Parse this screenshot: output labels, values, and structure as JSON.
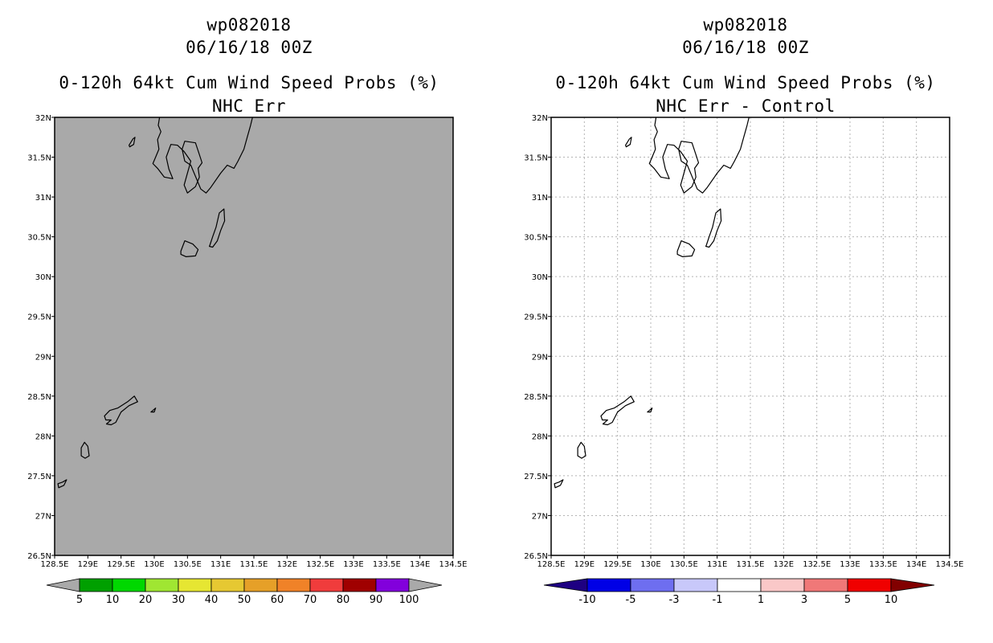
{
  "chart_data": [
    {
      "type": "heatmap",
      "storm_id": "wp082018",
      "datetime": "06/16/18 00Z",
      "title": "0-120h 64kt Cum Wind Speed Probs (%)",
      "subtitle": "NHC Err",
      "x_ticks": [
        "128.5E",
        "129E",
        "129.5E",
        "130E",
        "130.5E",
        "131E",
        "131.5E",
        "132E",
        "132.5E",
        "133E",
        "133.5E",
        "134E",
        "134.5E"
      ],
      "y_ticks": [
        "32N",
        "31.5N",
        "31N",
        "30.5N",
        "30N",
        "29.5N",
        "29N",
        "28.5N",
        "28N",
        "27.5N",
        "27N",
        "26.5N"
      ],
      "xlim": [
        128.5,
        134.5
      ],
      "ylim": [
        26.5,
        32
      ],
      "field_fill": "#a9a9a9",
      "gridlines": false,
      "field_value": "below 5% everywhere",
      "colorbar": {
        "labels": [
          "5",
          "10",
          "20",
          "30",
          "40",
          "50",
          "60",
          "70",
          "80",
          "90",
          "100"
        ],
        "colors": [
          "#a9a9a9",
          "#00a000",
          "#00d800",
          "#a0e632",
          "#e6e632",
          "#e6c832",
          "#e6a028",
          "#f08228",
          "#f03c3c",
          "#a00000",
          "#8200dc",
          "#a9a9a9"
        ]
      }
    },
    {
      "type": "heatmap",
      "storm_id": "wp082018",
      "datetime": "06/16/18 00Z",
      "title": "0-120h 64kt Cum Wind Speed Probs (%)",
      "subtitle": "NHC Err - Control",
      "x_ticks": [
        "128.5E",
        "129E",
        "129.5E",
        "130E",
        "130.5E",
        "131E",
        "131.5E",
        "132E",
        "132.5E",
        "133E",
        "133.5E",
        "134E",
        "134.5E"
      ],
      "y_ticks": [
        "32N",
        "31.5N",
        "31N",
        "30.5N",
        "30N",
        "29.5N",
        "29N",
        "28.5N",
        "28N",
        "27.5N",
        "27N",
        "26.5N"
      ],
      "xlim": [
        128.5,
        134.5
      ],
      "ylim": [
        26.5,
        32
      ],
      "field_fill": "#ffffff",
      "gridlines": true,
      "field_value": "difference between -1 and 1 everywhere",
      "colorbar": {
        "labels": [
          "-10",
          "-5",
          "-3",
          "-1",
          "1",
          "3",
          "5",
          "10"
        ],
        "colors": [
          "#1e0082",
          "#0000e6",
          "#6e6ef0",
          "#c8c8fa",
          "#ffffff",
          "#fac8c8",
          "#f07878",
          "#f00000",
          "#820000"
        ]
      }
    }
  ]
}
